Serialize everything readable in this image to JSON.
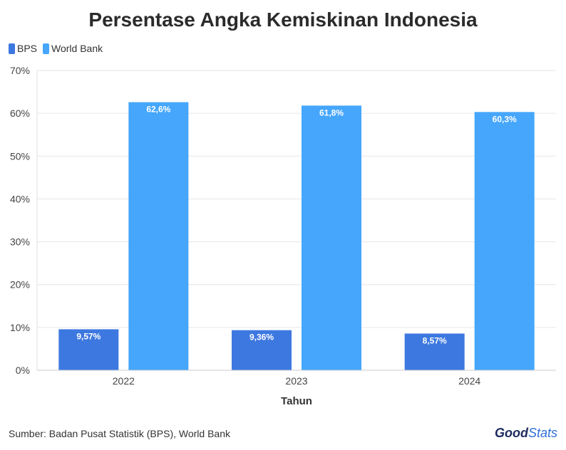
{
  "chart_data": {
    "type": "bar",
    "title": "Persentase Angka Kemiskinan Indonesia",
    "xlabel": "Tahun",
    "ylabel": "",
    "ylim": [
      0,
      70
    ],
    "yticks": [
      "0%",
      "10%",
      "20%",
      "30%",
      "40%",
      "50%",
      "60%",
      "70%"
    ],
    "categories": [
      "2022",
      "2023",
      "2024"
    ],
    "series": [
      {
        "name": "BPS",
        "values": [
          9.57,
          9.36,
          8.57
        ],
        "labels": [
          "9,57%",
          "9,36%",
          "8,57%"
        ],
        "color": "#3d78e0"
      },
      {
        "name": "World Bank",
        "values": [
          62.6,
          61.8,
          60.3
        ],
        "labels": [
          "62,6%",
          "61,8%",
          "60,3%"
        ],
        "color": "#45a6fb"
      }
    ],
    "grid": true,
    "legend": "top-left"
  },
  "source": "Sumber: Badan Pusat Statistik (BPS), World Bank",
  "logo": {
    "good": "Good",
    "stats": "Stats"
  }
}
